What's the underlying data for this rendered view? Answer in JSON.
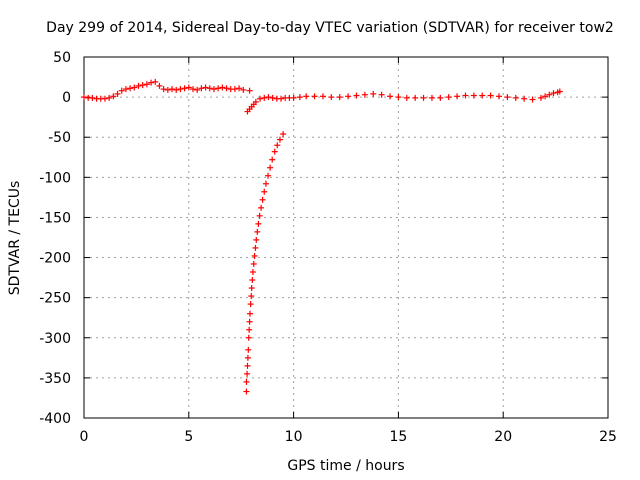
{
  "chart_data": {
    "type": "scatter",
    "title": "Day 299 of 2014, Sidereal Day-to-day VTEC variation (SDTVAR) for receiver tow2",
    "xlabel": "GPS time / hours",
    "ylabel": "SDTVAR / TECUs",
    "xlim": [
      0,
      25
    ],
    "ylim": [
      -400,
      50
    ],
    "xticks": [
      0,
      5,
      10,
      15,
      20,
      25
    ],
    "yticks": [
      50,
      0,
      -50,
      -100,
      -150,
      -200,
      -250,
      -300,
      -350,
      -400
    ],
    "grid": true,
    "marker": "+",
    "color": "#ff0000",
    "series": [
      {
        "name": "SDTVAR",
        "points": [
          [
            0.0,
            0
          ],
          [
            0.2,
            -1
          ],
          [
            0.4,
            -1
          ],
          [
            0.6,
            -2
          ],
          [
            0.8,
            -2
          ],
          [
            1.0,
            -2
          ],
          [
            1.2,
            -1
          ],
          [
            1.4,
            1
          ],
          [
            1.6,
            4
          ],
          [
            1.8,
            8
          ],
          [
            2.0,
            10
          ],
          [
            2.2,
            11
          ],
          [
            2.4,
            12
          ],
          [
            2.6,
            14
          ],
          [
            2.8,
            15
          ],
          [
            3.0,
            16
          ],
          [
            3.2,
            18
          ],
          [
            3.4,
            19
          ],
          [
            3.6,
            14
          ],
          [
            3.8,
            10
          ],
          [
            4.0,
            9
          ],
          [
            4.2,
            10
          ],
          [
            4.4,
            9
          ],
          [
            4.6,
            10
          ],
          [
            4.8,
            11
          ],
          [
            5.0,
            12
          ],
          [
            5.2,
            10
          ],
          [
            5.4,
            9
          ],
          [
            5.6,
            11
          ],
          [
            5.8,
            12
          ],
          [
            6.0,
            11
          ],
          [
            6.2,
            10
          ],
          [
            6.4,
            11
          ],
          [
            6.6,
            12
          ],
          [
            6.8,
            11
          ],
          [
            7.0,
            10
          ],
          [
            7.2,
            10
          ],
          [
            7.4,
            11
          ],
          [
            7.6,
            9
          ],
          [
            7.9,
            8
          ],
          [
            7.8,
            -18
          ],
          [
            7.9,
            -15
          ],
          [
            8.0,
            -12
          ],
          [
            8.1,
            -9
          ],
          [
            8.2,
            -6
          ],
          [
            8.4,
            -2
          ],
          [
            8.6,
            -1
          ],
          [
            8.8,
            0
          ],
          [
            9.0,
            -1
          ],
          [
            9.2,
            -2
          ],
          [
            9.4,
            -2
          ],
          [
            9.6,
            -1
          ],
          [
            9.8,
            -1
          ],
          [
            10.0,
            -1
          ],
          [
            10.3,
            0
          ],
          [
            10.6,
            1
          ],
          [
            11.0,
            1
          ],
          [
            11.4,
            1
          ],
          [
            11.8,
            0
          ],
          [
            12.2,
            0
          ],
          [
            12.6,
            1
          ],
          [
            13.0,
            2
          ],
          [
            13.4,
            3
          ],
          [
            13.8,
            4
          ],
          [
            14.2,
            3
          ],
          [
            14.6,
            1
          ],
          [
            15.0,
            0
          ],
          [
            15.4,
            -1
          ],
          [
            15.8,
            -1
          ],
          [
            16.2,
            -1
          ],
          [
            16.6,
            -1
          ],
          [
            17.0,
            -1
          ],
          [
            17.4,
            0
          ],
          [
            17.8,
            1
          ],
          [
            18.2,
            2
          ],
          [
            18.6,
            2
          ],
          [
            19.0,
            2
          ],
          [
            19.4,
            2
          ],
          [
            19.8,
            1
          ],
          [
            20.2,
            0
          ],
          [
            20.6,
            -1
          ],
          [
            21.0,
            -2
          ],
          [
            21.4,
            -3
          ],
          [
            21.8,
            -1
          ],
          [
            22.0,
            1
          ],
          [
            22.2,
            3
          ],
          [
            22.4,
            5
          ],
          [
            22.6,
            6
          ],
          [
            22.7,
            7
          ],
          [
            7.75,
            -367
          ],
          [
            7.75,
            -355
          ],
          [
            7.78,
            -345
          ],
          [
            7.8,
            -335
          ],
          [
            7.82,
            -325
          ],
          [
            7.84,
            -315
          ],
          [
            7.86,
            -300
          ],
          [
            7.88,
            -290
          ],
          [
            7.9,
            -280
          ],
          [
            7.92,
            -270
          ],
          [
            7.95,
            -258
          ],
          [
            7.98,
            -248
          ],
          [
            8.0,
            -238
          ],
          [
            8.03,
            -228
          ],
          [
            8.06,
            -218
          ],
          [
            8.1,
            -208
          ],
          [
            8.14,
            -198
          ],
          [
            8.18,
            -188
          ],
          [
            8.22,
            -178
          ],
          [
            8.27,
            -168
          ],
          [
            8.32,
            -158
          ],
          [
            8.38,
            -148
          ],
          [
            8.45,
            -138
          ],
          [
            8.52,
            -128
          ],
          [
            8.6,
            -118
          ],
          [
            8.68,
            -108
          ],
          [
            8.78,
            -98
          ],
          [
            8.88,
            -88
          ],
          [
            8.98,
            -78
          ],
          [
            9.1,
            -68
          ],
          [
            9.22,
            -60
          ],
          [
            9.35,
            -53
          ],
          [
            9.5,
            -46
          ]
        ]
      }
    ]
  }
}
